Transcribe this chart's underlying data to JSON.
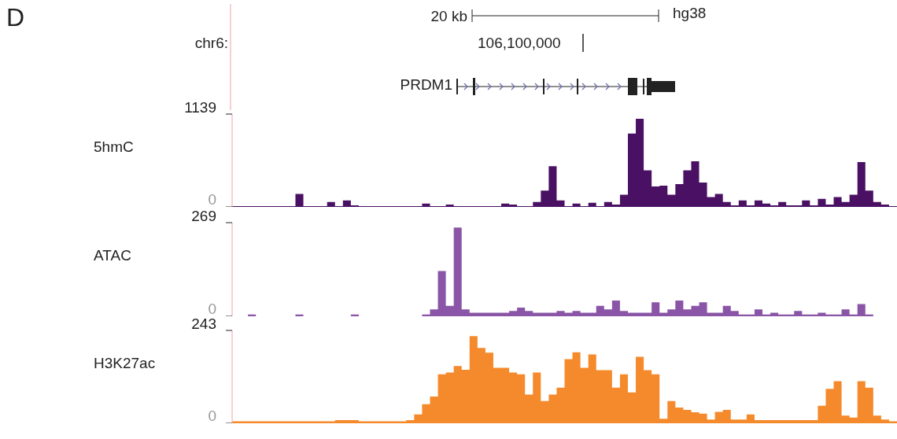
{
  "chart_data": [
    {
      "type": "area",
      "ylabel": "5hmC",
      "color": "#4a1063",
      "ylim": [
        0,
        1139
      ],
      "yticks": [
        0,
        1139
      ],
      "annotations": [
        "D",
        "chr6:",
        "20 kb",
        "hg38",
        "106,100,000",
        "PRDM1"
      ],
      "categories": [
        null,
        null,
        null,
        null,
        null,
        null,
        null,
        null,
        null,
        null,
        null,
        null,
        null,
        null,
        null,
        null,
        null,
        null,
        null,
        null,
        null,
        null,
        null,
        null,
        null,
        null,
        null,
        null,
        null,
        null,
        null,
        null,
        null,
        null,
        null,
        null,
        null,
        null,
        null,
        null,
        null,
        null,
        null,
        null,
        null,
        null,
        null,
        null,
        null,
        null,
        null,
        null,
        null,
        null,
        null,
        null,
        null,
        null,
        null,
        null,
        null,
        null,
        null,
        null,
        null,
        null,
        null,
        null,
        null,
        null,
        null,
        null,
        null,
        null,
        null,
        null,
        null,
        null,
        null,
        null,
        null,
        null,
        null,
        null,
        null
      ],
      "values": [
        10,
        10,
        10,
        10,
        10,
        10,
        10,
        10,
        160,
        10,
        10,
        10,
        60,
        10,
        80,
        20,
        10,
        10,
        10,
        10,
        10,
        10,
        10,
        10,
        40,
        10,
        10,
        30,
        10,
        10,
        10,
        10,
        10,
        10,
        40,
        30,
        10,
        10,
        60,
        200,
        500,
        80,
        10,
        40,
        10,
        50,
        10,
        60,
        30,
        150,
        900,
        1080,
        450,
        250,
        260,
        150,
        280,
        450,
        560,
        300,
        120,
        160,
        60,
        20,
        80,
        20,
        80,
        40,
        20,
        60,
        20,
        20,
        80,
        20,
        100,
        30,
        120,
        60,
        150,
        550,
        200,
        60,
        30,
        10,
        10
      ]
    },
    {
      "type": "area",
      "ylabel": "ATAC",
      "color": "#8a55a6",
      "ylim": [
        0,
        269
      ],
      "yticks": [
        0,
        269
      ],
      "categories": [
        null,
        null,
        null,
        null,
        null,
        null,
        null,
        null,
        null,
        null,
        null,
        null,
        null,
        null,
        null,
        null,
        null,
        null,
        null,
        null,
        null,
        null,
        null,
        null,
        null,
        null,
        null,
        null,
        null,
        null,
        null,
        null,
        null,
        null,
        null,
        null,
        null,
        null,
        null,
        null,
        null,
        null,
        null,
        null,
        null,
        null,
        null,
        null,
        null,
        null,
        null,
        null,
        null,
        null,
        null,
        null,
        null,
        null,
        null,
        null,
        null,
        null,
        null,
        null,
        null,
        null,
        null,
        null,
        null,
        null,
        null,
        null,
        null,
        null,
        null,
        null,
        null,
        null,
        null,
        null,
        null,
        null,
        null,
        null,
        null
      ],
      "values": [
        0,
        0,
        5,
        0,
        0,
        0,
        0,
        0,
        5,
        0,
        0,
        0,
        0,
        0,
        0,
        5,
        0,
        0,
        0,
        0,
        0,
        0,
        0,
        0,
        5,
        20,
        130,
        30,
        255,
        20,
        10,
        10,
        10,
        10,
        10,
        15,
        25,
        15,
        10,
        10,
        10,
        15,
        10,
        15,
        10,
        10,
        30,
        20,
        45,
        15,
        10,
        10,
        10,
        40,
        10,
        20,
        45,
        20,
        30,
        40,
        10,
        10,
        30,
        15,
        5,
        5,
        20,
        5,
        10,
        5,
        5,
        15,
        5,
        5,
        10,
        5,
        5,
        20,
        5,
        35,
        5,
        0,
        0,
        0,
        0
      ]
    },
    {
      "type": "area",
      "ylabel": "H3K27ac",
      "color": "#f58a2c",
      "ylim": [
        0,
        243
      ],
      "yticks": [
        0,
        243
      ],
      "categories": [
        null,
        null,
        null,
        null,
        null,
        null,
        null,
        null,
        null,
        null,
        null,
        null,
        null,
        null,
        null,
        null,
        null,
        null,
        null,
        null,
        null,
        null,
        null,
        null,
        null,
        null,
        null,
        null,
        null,
        null,
        null,
        null,
        null,
        null,
        null,
        null,
        null,
        null,
        null,
        null,
        null,
        null,
        null,
        null,
        null,
        null,
        null,
        null,
        null,
        null,
        null,
        null,
        null,
        null,
        null,
        null,
        null,
        null,
        null,
        null,
        null,
        null,
        null,
        null,
        null,
        null,
        null,
        null,
        null,
        null,
        null,
        null,
        null,
        null,
        null,
        null,
        null,
        null,
        null,
        null,
        null,
        null,
        null,
        null,
        null
      ],
      "values": [
        5,
        5,
        5,
        5,
        5,
        5,
        5,
        5,
        5,
        5,
        5,
        5,
        5,
        8,
        8,
        8,
        5,
        5,
        5,
        5,
        5,
        5,
        8,
        23,
        50,
        70,
        128,
        133,
        150,
        140,
        228,
        197,
        185,
        145,
        145,
        133,
        128,
        75,
        133,
        58,
        75,
        93,
        168,
        186,
        145,
        180,
        139,
        139,
        93,
        128,
        81,
        174,
        139,
        128,
        12,
        58,
        41,
        35,
        29,
        25,
        10,
        30,
        35,
        10,
        10,
        23,
        8,
        8,
        8,
        8,
        8,
        8,
        8,
        8,
        46,
        90,
        110,
        20,
        15,
        110,
        93,
        20,
        10,
        5,
        5
      ]
    }
  ]
}
